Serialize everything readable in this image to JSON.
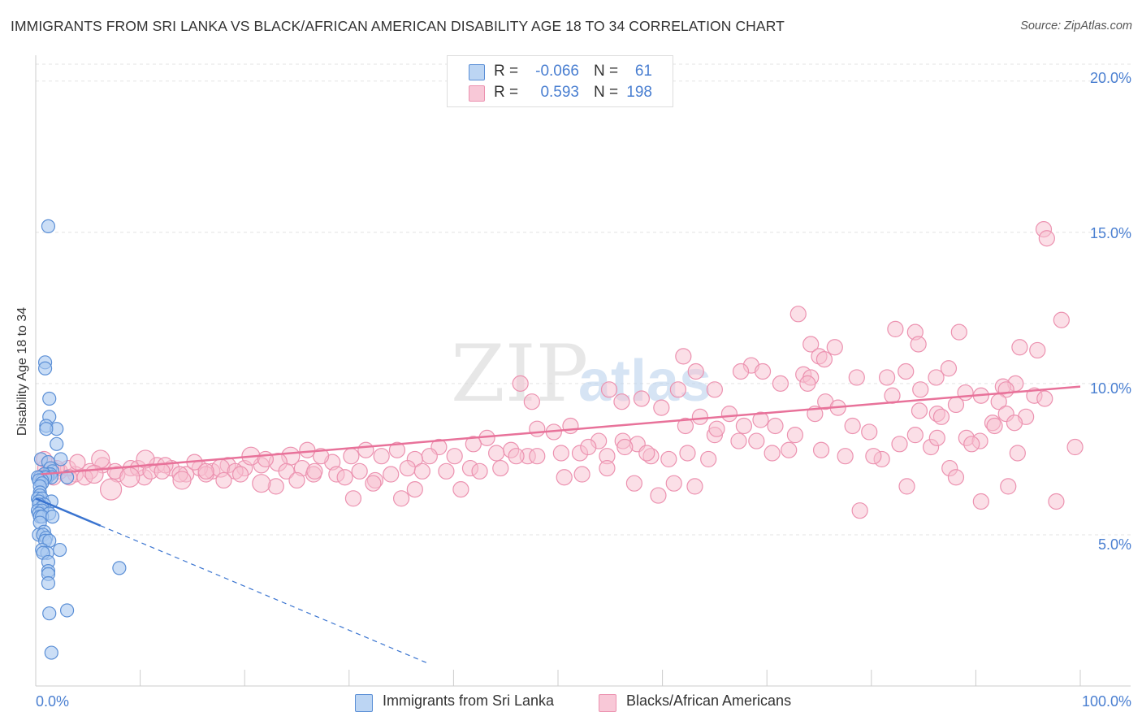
{
  "header": {
    "title": "IMMIGRANTS FROM SRI LANKA VS BLACK/AFRICAN AMERICAN DISABILITY AGE 18 TO 34 CORRELATION CHART",
    "source": "Source: ZipAtlas.com"
  },
  "watermark": "ZIPatlas",
  "legend_top": {
    "rows": [
      {
        "r_label": "R =",
        "r_value": "-0.066",
        "n_label": "N =",
        "n_value": "61"
      },
      {
        "r_label": "R =",
        "r_value": "0.593",
        "n_label": "N =",
        "n_value": "198"
      }
    ]
  },
  "colors": {
    "blue_fill": "#a9c8f0",
    "blue_stroke": "#5b8fd6",
    "blue_line": "#3a74d0",
    "pink_fill": "#f7bfd0",
    "pink_stroke": "#ec92b0",
    "pink_line": "#e8729a",
    "tick_label": "#4a7fd1",
    "grid": "#e3e3e3"
  },
  "chart_data": {
    "type": "scatter",
    "ylabel": "Disability Age 18 to 34",
    "xlim": [
      0,
      100
    ],
    "ylim": [
      0,
      20.8
    ],
    "x_tick_labels": [
      "0.0%",
      "100.0%"
    ],
    "y_ticks": [
      5,
      10,
      15,
      20
    ],
    "y_tick_labels": [
      "5.0%",
      "10.0%",
      "15.0%",
      "20.0%"
    ],
    "grid": true,
    "legend_position": "top-center",
    "series": [
      {
        "name": "Immigrants from Sri Lanka",
        "color": "blue",
        "trend": {
          "x0": 0.0,
          "y0": 6.2,
          "x1": 6.2,
          "y1": 5.3,
          "dashed_to_x": 37.5
        },
        "points": [
          [
            1.2,
            15.2
          ],
          [
            0.9,
            10.7
          ],
          [
            0.9,
            10.5
          ],
          [
            1.3,
            9.5
          ],
          [
            1.3,
            8.9
          ],
          [
            1.0,
            8.6
          ],
          [
            2.0,
            8.5
          ],
          [
            1.0,
            8.5
          ],
          [
            2.0,
            8.0
          ],
          [
            0.5,
            7.5
          ],
          [
            2.4,
            7.5
          ],
          [
            1.2,
            7.4
          ],
          [
            1.4,
            7.2
          ],
          [
            1.6,
            7.1
          ],
          [
            1.2,
            7.0
          ],
          [
            1.4,
            7.0
          ],
          [
            0.8,
            7.0
          ],
          [
            0.4,
            6.9
          ],
          [
            1.1,
            6.9
          ],
          [
            1.5,
            6.9
          ],
          [
            0.9,
            6.9
          ],
          [
            3.0,
            6.9
          ],
          [
            0.2,
            6.9
          ],
          [
            0.6,
            6.8
          ],
          [
            0.3,
            6.8
          ],
          [
            0.6,
            6.7
          ],
          [
            0.4,
            6.6
          ],
          [
            0.4,
            6.4
          ],
          [
            0.4,
            6.3
          ],
          [
            0.2,
            6.2
          ],
          [
            0.6,
            6.2
          ],
          [
            1.5,
            6.1
          ],
          [
            0.3,
            6.1
          ],
          [
            0.8,
            6.0
          ],
          [
            0.3,
            6.0
          ],
          [
            0.6,
            5.9
          ],
          [
            0.2,
            5.8
          ],
          [
            0.6,
            5.8
          ],
          [
            0.3,
            5.7
          ],
          [
            1.3,
            5.7
          ],
          [
            0.4,
            5.6
          ],
          [
            0.6,
            5.6
          ],
          [
            1.6,
            5.6
          ],
          [
            0.4,
            5.4
          ],
          [
            0.8,
            5.1
          ],
          [
            0.3,
            5.0
          ],
          [
            0.7,
            5.0
          ],
          [
            1.0,
            4.9
          ],
          [
            0.9,
            4.8
          ],
          [
            1.3,
            4.8
          ],
          [
            0.6,
            4.5
          ],
          [
            2.3,
            4.5
          ],
          [
            1.1,
            4.4
          ],
          [
            0.7,
            4.4
          ],
          [
            1.2,
            4.1
          ],
          [
            1.2,
            3.8
          ],
          [
            8.0,
            3.9
          ],
          [
            1.2,
            3.7
          ],
          [
            1.2,
            3.4
          ],
          [
            3.0,
            2.5
          ],
          [
            1.3,
            2.4
          ],
          [
            1.5,
            1.1
          ]
        ],
        "bubble_size": "uniform"
      },
      {
        "name": "Blacks/African Americans",
        "color": "pink",
        "trend": {
          "x0": 0.5,
          "y0": 7.0,
          "x1": 100.0,
          "y1": 9.9
        },
        "points": [
          [
            96.5,
            15.1
          ],
          [
            96.8,
            14.8
          ],
          [
            98.2,
            12.1
          ],
          [
            73.0,
            12.3
          ],
          [
            82.3,
            11.8
          ],
          [
            84.2,
            11.7
          ],
          [
            88.4,
            11.7
          ],
          [
            74.2,
            11.3
          ],
          [
            84.5,
            11.3
          ],
          [
            94.2,
            11.2
          ],
          [
            95.9,
            11.1
          ],
          [
            76.5,
            11.2
          ],
          [
            75.0,
            10.9
          ],
          [
            75.5,
            10.8
          ],
          [
            62.0,
            10.9
          ],
          [
            68.5,
            10.6
          ],
          [
            83.3,
            10.4
          ],
          [
            87.4,
            10.5
          ],
          [
            63.2,
            10.4
          ],
          [
            73.5,
            10.3
          ],
          [
            78.6,
            10.2
          ],
          [
            74.2,
            10.2
          ],
          [
            81.5,
            10.2
          ],
          [
            86.2,
            10.2
          ],
          [
            73.9,
            10.0
          ],
          [
            93.8,
            10.0
          ],
          [
            92.6,
            9.9
          ],
          [
            92.9,
            9.8
          ],
          [
            84.7,
            9.8
          ],
          [
            82.0,
            9.6
          ],
          [
            89.0,
            9.7
          ],
          [
            90.5,
            9.6
          ],
          [
            95.6,
            9.6
          ],
          [
            96.6,
            9.5
          ],
          [
            92.2,
            9.4
          ],
          [
            88.1,
            9.3
          ],
          [
            84.6,
            9.1
          ],
          [
            86.3,
            9.0
          ],
          [
            92.9,
            9.0
          ],
          [
            86.7,
            8.9
          ],
          [
            91.6,
            8.7
          ],
          [
            94.8,
            8.9
          ],
          [
            93.7,
            8.7
          ],
          [
            91.8,
            8.6
          ],
          [
            89.1,
            8.2
          ],
          [
            90.4,
            8.1
          ],
          [
            82.7,
            8.0
          ],
          [
            84.2,
            8.3
          ],
          [
            81.0,
            7.5
          ],
          [
            85.7,
            7.9
          ],
          [
            89.6,
            8.0
          ],
          [
            86.3,
            8.2
          ],
          [
            99.5,
            7.9
          ],
          [
            87.5,
            7.2
          ],
          [
            93.1,
            6.6
          ],
          [
            83.4,
            6.6
          ],
          [
            97.7,
            6.1
          ],
          [
            78.9,
            5.8
          ],
          [
            90.5,
            6.1
          ],
          [
            88.1,
            6.9
          ],
          [
            94.0,
            7.7
          ],
          [
            80.2,
            7.6
          ],
          [
            77.5,
            7.6
          ],
          [
            75.2,
            7.8
          ],
          [
            72.1,
            7.8
          ],
          [
            70.5,
            7.7
          ],
          [
            69.0,
            8.1
          ],
          [
            67.3,
            8.1
          ],
          [
            65.0,
            8.3
          ],
          [
            64.4,
            7.5
          ],
          [
            62.4,
            7.7
          ],
          [
            60.6,
            7.5
          ],
          [
            58.9,
            7.6
          ],
          [
            57.6,
            8.0
          ],
          [
            56.2,
            8.1
          ],
          [
            53.9,
            8.1
          ],
          [
            52.1,
            7.7
          ],
          [
            50.3,
            7.7
          ],
          [
            47.1,
            7.6
          ],
          [
            45.5,
            7.8
          ],
          [
            44.1,
            7.7
          ],
          [
            43.2,
            8.2
          ],
          [
            41.9,
            8.0
          ],
          [
            40.1,
            7.6
          ],
          [
            38.6,
            7.9
          ],
          [
            37.7,
            7.6
          ],
          [
            36.3,
            7.5
          ],
          [
            34.6,
            7.8
          ],
          [
            33.1,
            7.6
          ],
          [
            31.6,
            7.8
          ],
          [
            30.2,
            7.6
          ],
          [
            28.4,
            7.4
          ],
          [
            27.3,
            7.6
          ],
          [
            26.0,
            7.8
          ],
          [
            24.4,
            7.6
          ],
          [
            23.2,
            7.4
          ],
          [
            21.6,
            7.3
          ],
          [
            20.0,
            7.2
          ],
          [
            18.4,
            7.3
          ],
          [
            16.9,
            7.1
          ],
          [
            15.7,
            7.2
          ],
          [
            14.4,
            7.0
          ],
          [
            13.0,
            7.2
          ],
          [
            11.6,
            7.3
          ],
          [
            10.4,
            6.9
          ],
          [
            9.1,
            7.2
          ],
          [
            7.8,
            7.0
          ],
          [
            6.4,
            7.3
          ],
          [
            5.2,
            7.1
          ],
          [
            3.8,
            7.0
          ],
          [
            2.3,
            7.1
          ],
          [
            1.2,
            7.2
          ],
          [
            0.8,
            7.5
          ],
          [
            1.7,
            6.9
          ],
          [
            3.1,
            7.2
          ],
          [
            4.7,
            6.9
          ],
          [
            6.2,
            7.5
          ],
          [
            7.6,
            7.1
          ],
          [
            9.8,
            7.2
          ],
          [
            11.0,
            7.1
          ],
          [
            12.4,
            7.3
          ],
          [
            13.8,
            7.0
          ],
          [
            15.2,
            7.4
          ],
          [
            16.3,
            7.0
          ],
          [
            17.7,
            7.2
          ],
          [
            19.1,
            7.1
          ],
          [
            20.6,
            7.6
          ],
          [
            22.0,
            7.5
          ],
          [
            24.0,
            7.1
          ],
          [
            25.5,
            7.2
          ],
          [
            26.6,
            7.0
          ],
          [
            28.8,
            7.0
          ],
          [
            29.6,
            6.9
          ],
          [
            31.0,
            7.1
          ],
          [
            32.5,
            6.8
          ],
          [
            34.0,
            7.0
          ],
          [
            35.6,
            7.2
          ],
          [
            37.0,
            7.1
          ],
          [
            39.3,
            7.1
          ],
          [
            40.7,
            6.5
          ],
          [
            41.6,
            7.2
          ],
          [
            42.5,
            7.1
          ],
          [
            44.5,
            7.2
          ],
          [
            46.0,
            7.6
          ],
          [
            48.0,
            8.5
          ],
          [
            49.6,
            8.4
          ],
          [
            51.2,
            8.6
          ],
          [
            52.9,
            7.9
          ],
          [
            54.7,
            7.6
          ],
          [
            56.4,
            7.9
          ],
          [
            58.5,
            7.7
          ],
          [
            59.9,
            9.2
          ],
          [
            61.5,
            9.8
          ],
          [
            62.2,
            8.6
          ],
          [
            63.6,
            8.9
          ],
          [
            65.2,
            8.5
          ],
          [
            66.4,
            9.0
          ],
          [
            67.8,
            8.6
          ],
          [
            69.4,
            8.8
          ],
          [
            70.8,
            8.6
          ],
          [
            72.7,
            8.3
          ],
          [
            74.6,
            9.0
          ],
          [
            75.6,
            9.4
          ],
          [
            76.8,
            9.2
          ],
          [
            78.2,
            8.6
          ],
          [
            79.8,
            8.4
          ],
          [
            63.1,
            6.6
          ],
          [
            61.1,
            6.7
          ],
          [
            59.6,
            6.3
          ],
          [
            57.3,
            6.7
          ],
          [
            54.7,
            7.2
          ],
          [
            52.3,
            7.0
          ],
          [
            50.6,
            6.9
          ],
          [
            48.0,
            7.6
          ],
          [
            46.4,
            10.0
          ],
          [
            47.5,
            9.4
          ],
          [
            54.9,
            9.8
          ],
          [
            56.1,
            9.4
          ],
          [
            58.0,
            9.5
          ],
          [
            65.0,
            9.8
          ],
          [
            67.5,
            10.4
          ],
          [
            69.6,
            10.4
          ],
          [
            71.3,
            10.0
          ],
          [
            36.3,
            6.5
          ],
          [
            35.0,
            6.2
          ],
          [
            32.3,
            6.7
          ],
          [
            30.4,
            6.2
          ],
          [
            26.7,
            7.1
          ],
          [
            25.0,
            6.8
          ],
          [
            23.0,
            6.6
          ],
          [
            21.6,
            6.7
          ],
          [
            19.6,
            7.0
          ],
          [
            18.0,
            6.8
          ],
          [
            16.3,
            7.1
          ],
          [
            14.0,
            6.8
          ],
          [
            12.1,
            7.1
          ],
          [
            10.5,
            7.5
          ],
          [
            9.0,
            6.9
          ],
          [
            7.2,
            6.5
          ],
          [
            5.6,
            7.0
          ],
          [
            4.0,
            7.4
          ],
          [
            3.2,
            6.9
          ],
          [
            2.0,
            7.2
          ],
          [
            1.0,
            7.0
          ],
          [
            0.6,
            6.9
          ]
        ],
        "bubble_size": "mostly uniform, a few larger"
      }
    ]
  },
  "legend_bottom": {
    "items": [
      {
        "label": "Immigrants from Sri Lanka"
      },
      {
        "label": "Blacks/African Americans"
      }
    ]
  }
}
